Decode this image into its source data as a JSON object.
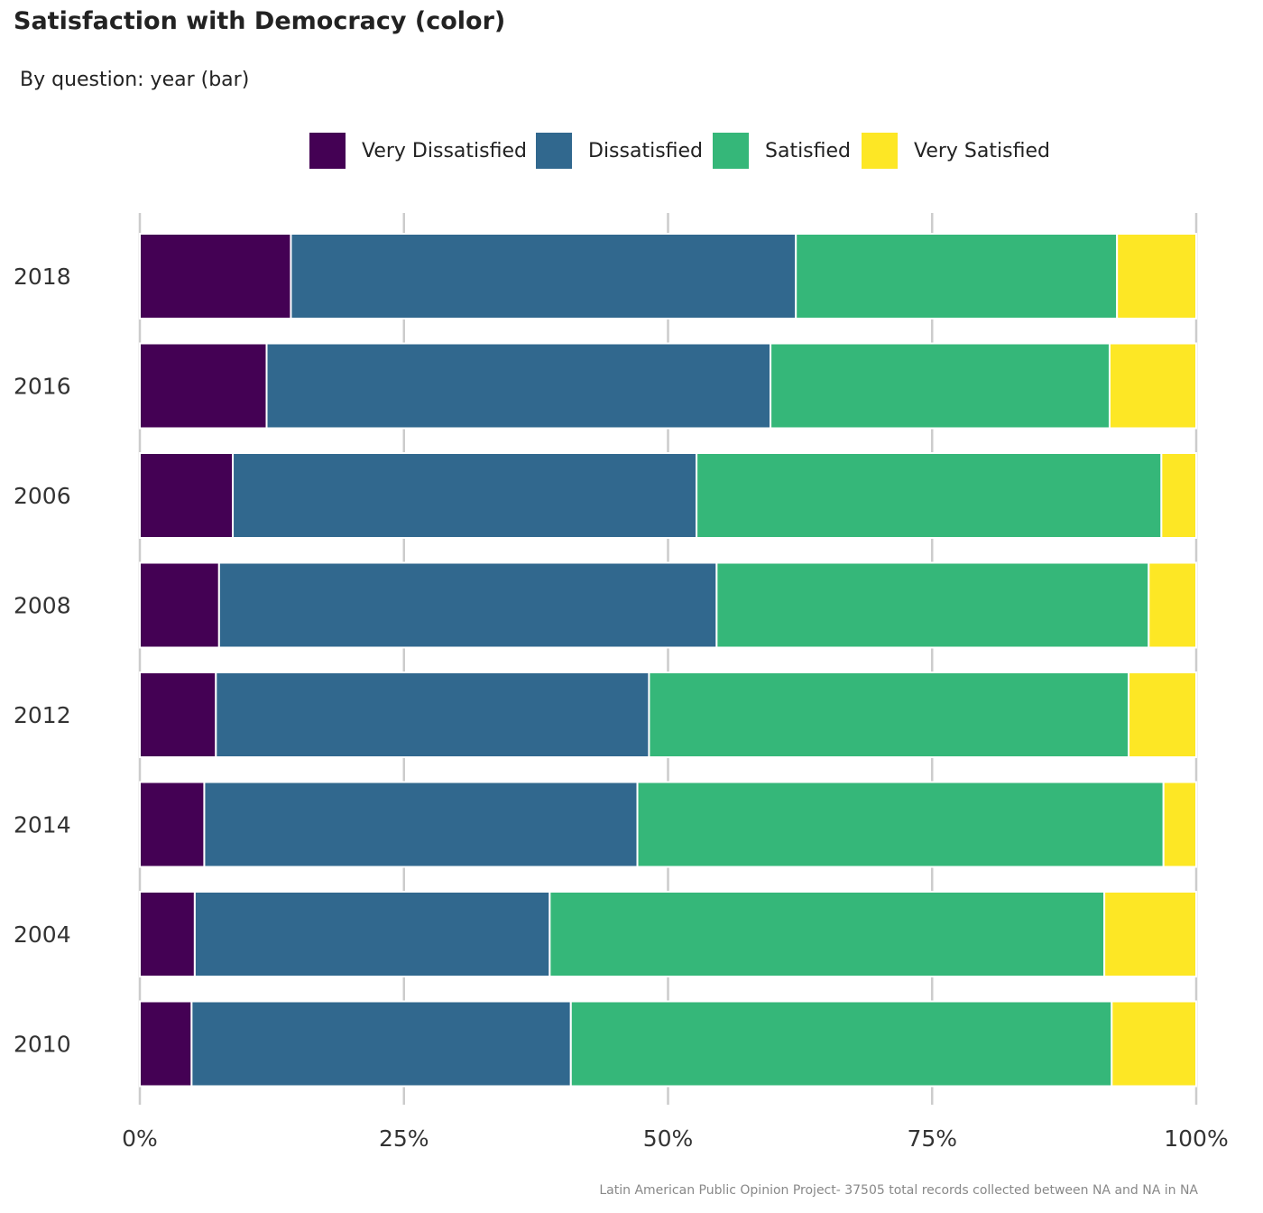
{
  "chart_data": {
    "type": "bar",
    "orientation": "horizontal",
    "stacked": true,
    "title": "Satisfaction with Democracy (color)",
    "subtitle": "By question: year (bar)",
    "caption": "Latin American Public Opinion Project- 37505 total records collected between NA and NA in  NA",
    "legend_position": "top",
    "grid": "vertical major",
    "xlim": [
      0,
      100
    ],
    "x_ticks": [
      "0%",
      "25%",
      "50%",
      "75%",
      "100%"
    ],
    "categories": [
      "2018",
      "2016",
      "2006",
      "2008",
      "2012",
      "2014",
      "2004",
      "2010"
    ],
    "series": [
      {
        "name": "Very Dissatisfied",
        "color": "#440154",
        "values": [
          14.3,
          12.0,
          8.8,
          7.5,
          7.2,
          6.1,
          5.2,
          4.9
        ]
      },
      {
        "name": "Dissatisfied",
        "color": "#31688E",
        "values": [
          47.8,
          47.7,
          43.9,
          47.1,
          41.0,
          41.0,
          33.6,
          35.9
        ]
      },
      {
        "name": "Satisfied",
        "color": "#35B779",
        "values": [
          30.4,
          32.1,
          44.0,
          40.9,
          45.4,
          49.8,
          52.5,
          51.2
        ]
      },
      {
        "name": "Very Satisfied",
        "color": "#FDE725",
        "values": [
          7.5,
          8.2,
          3.3,
          4.5,
          6.4,
          3.1,
          8.7,
          8.0
        ]
      }
    ]
  }
}
